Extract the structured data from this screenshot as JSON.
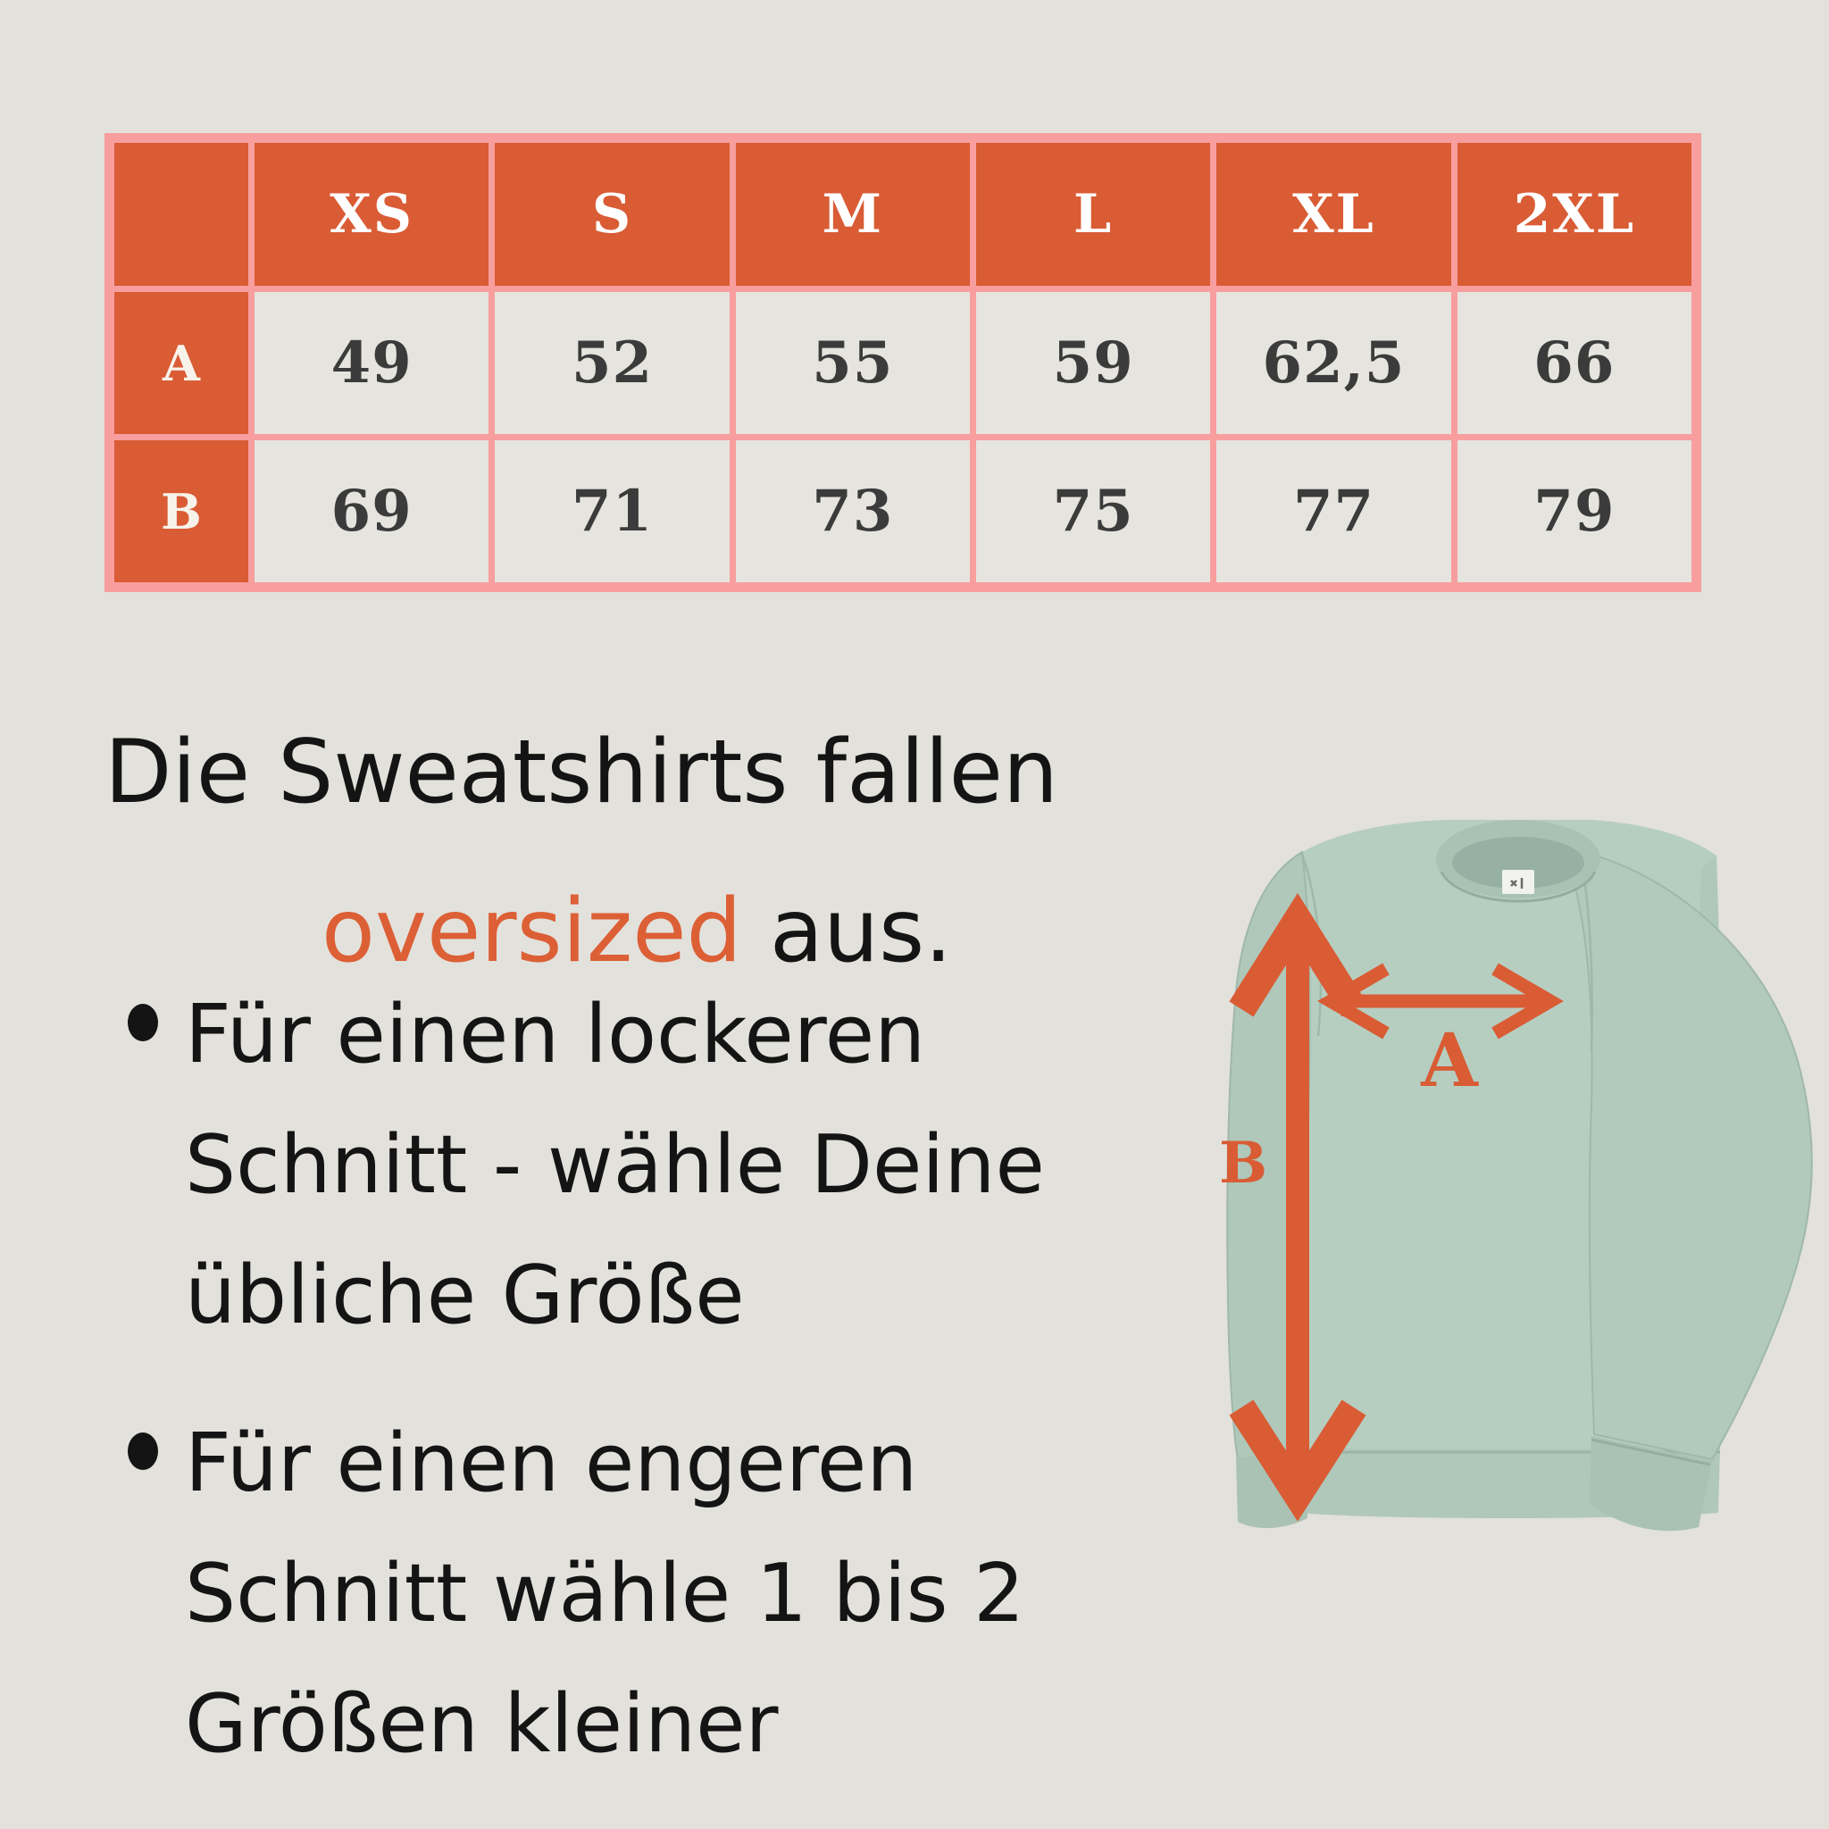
{
  "colors": {
    "background": "#e3e1db",
    "accent_orange": "#d95c35",
    "highlight_orange": "#dc5f35",
    "table_border_pink": "#f89e9e",
    "table_cell_bg": "#e6e4de",
    "table_value_text": "#3b3b3b",
    "header_text": "#ffffff",
    "body_text": "#141414",
    "shirt_green": "#b6cec0",
    "shirt_green_dark": "#a9c2b4",
    "shirt_green_shadow": "#96b1a3",
    "label_white": "#f2f2ee"
  },
  "size_table": {
    "columns": [
      "XS",
      "S",
      "M",
      "L",
      "XL",
      "2XL"
    ],
    "rows": [
      {
        "label": "A",
        "values": [
          "49",
          "52",
          "55",
          "59",
          "62,5",
          "66"
        ]
      },
      {
        "label": "B",
        "values": [
          "69",
          "71",
          "73",
          "75",
          "77",
          "79"
        ]
      }
    ]
  },
  "description": {
    "heading": {
      "prefix": "Die Sweatshirts fallen",
      "highlight": "oversized",
      "suffix": " aus."
    },
    "bullets": [
      {
        "lines": [
          "Für einen lockeren",
          "Schnitt - wähle Deine",
          "übliche Größe"
        ]
      },
      {
        "lines": [
          "Für einen engeren",
          "Schnitt wähle 1 bis 2",
          "Größen kleiner"
        ]
      }
    ]
  },
  "diagram": {
    "width_label": "A",
    "length_label": "B"
  }
}
